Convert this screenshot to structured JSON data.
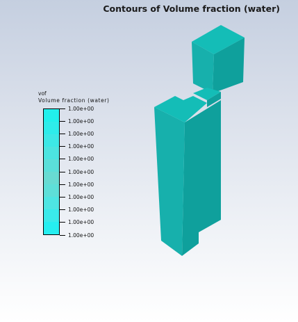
{
  "plot": {
    "title": "Contours of Volume fraction (water)"
  },
  "legend": {
    "variable": "vof",
    "name": "Volume fraction (water)",
    "ticks": [
      "1.00e+00",
      "1.00e+00",
      "1.00e+00",
      "1.00e+00",
      "1.00e+00",
      "1.00e+00",
      "1.00e+00",
      "1.00e+00",
      "1.00e+00",
      "1.00e+00",
      "1.00e+00"
    ],
    "band_colors": [
      "#22f0ec",
      "#2eecea",
      "#3de8e6",
      "#4ce4e0",
      "#5bdfd9",
      "#68dbd2",
      "#5edfd8",
      "#4ee5e2",
      "#3aeaea",
      "#26eef0"
    ]
  },
  "model": {
    "face_top": "#14bdb7",
    "face_front": "#17b0ac",
    "face_side": "#0fa09c"
  }
}
